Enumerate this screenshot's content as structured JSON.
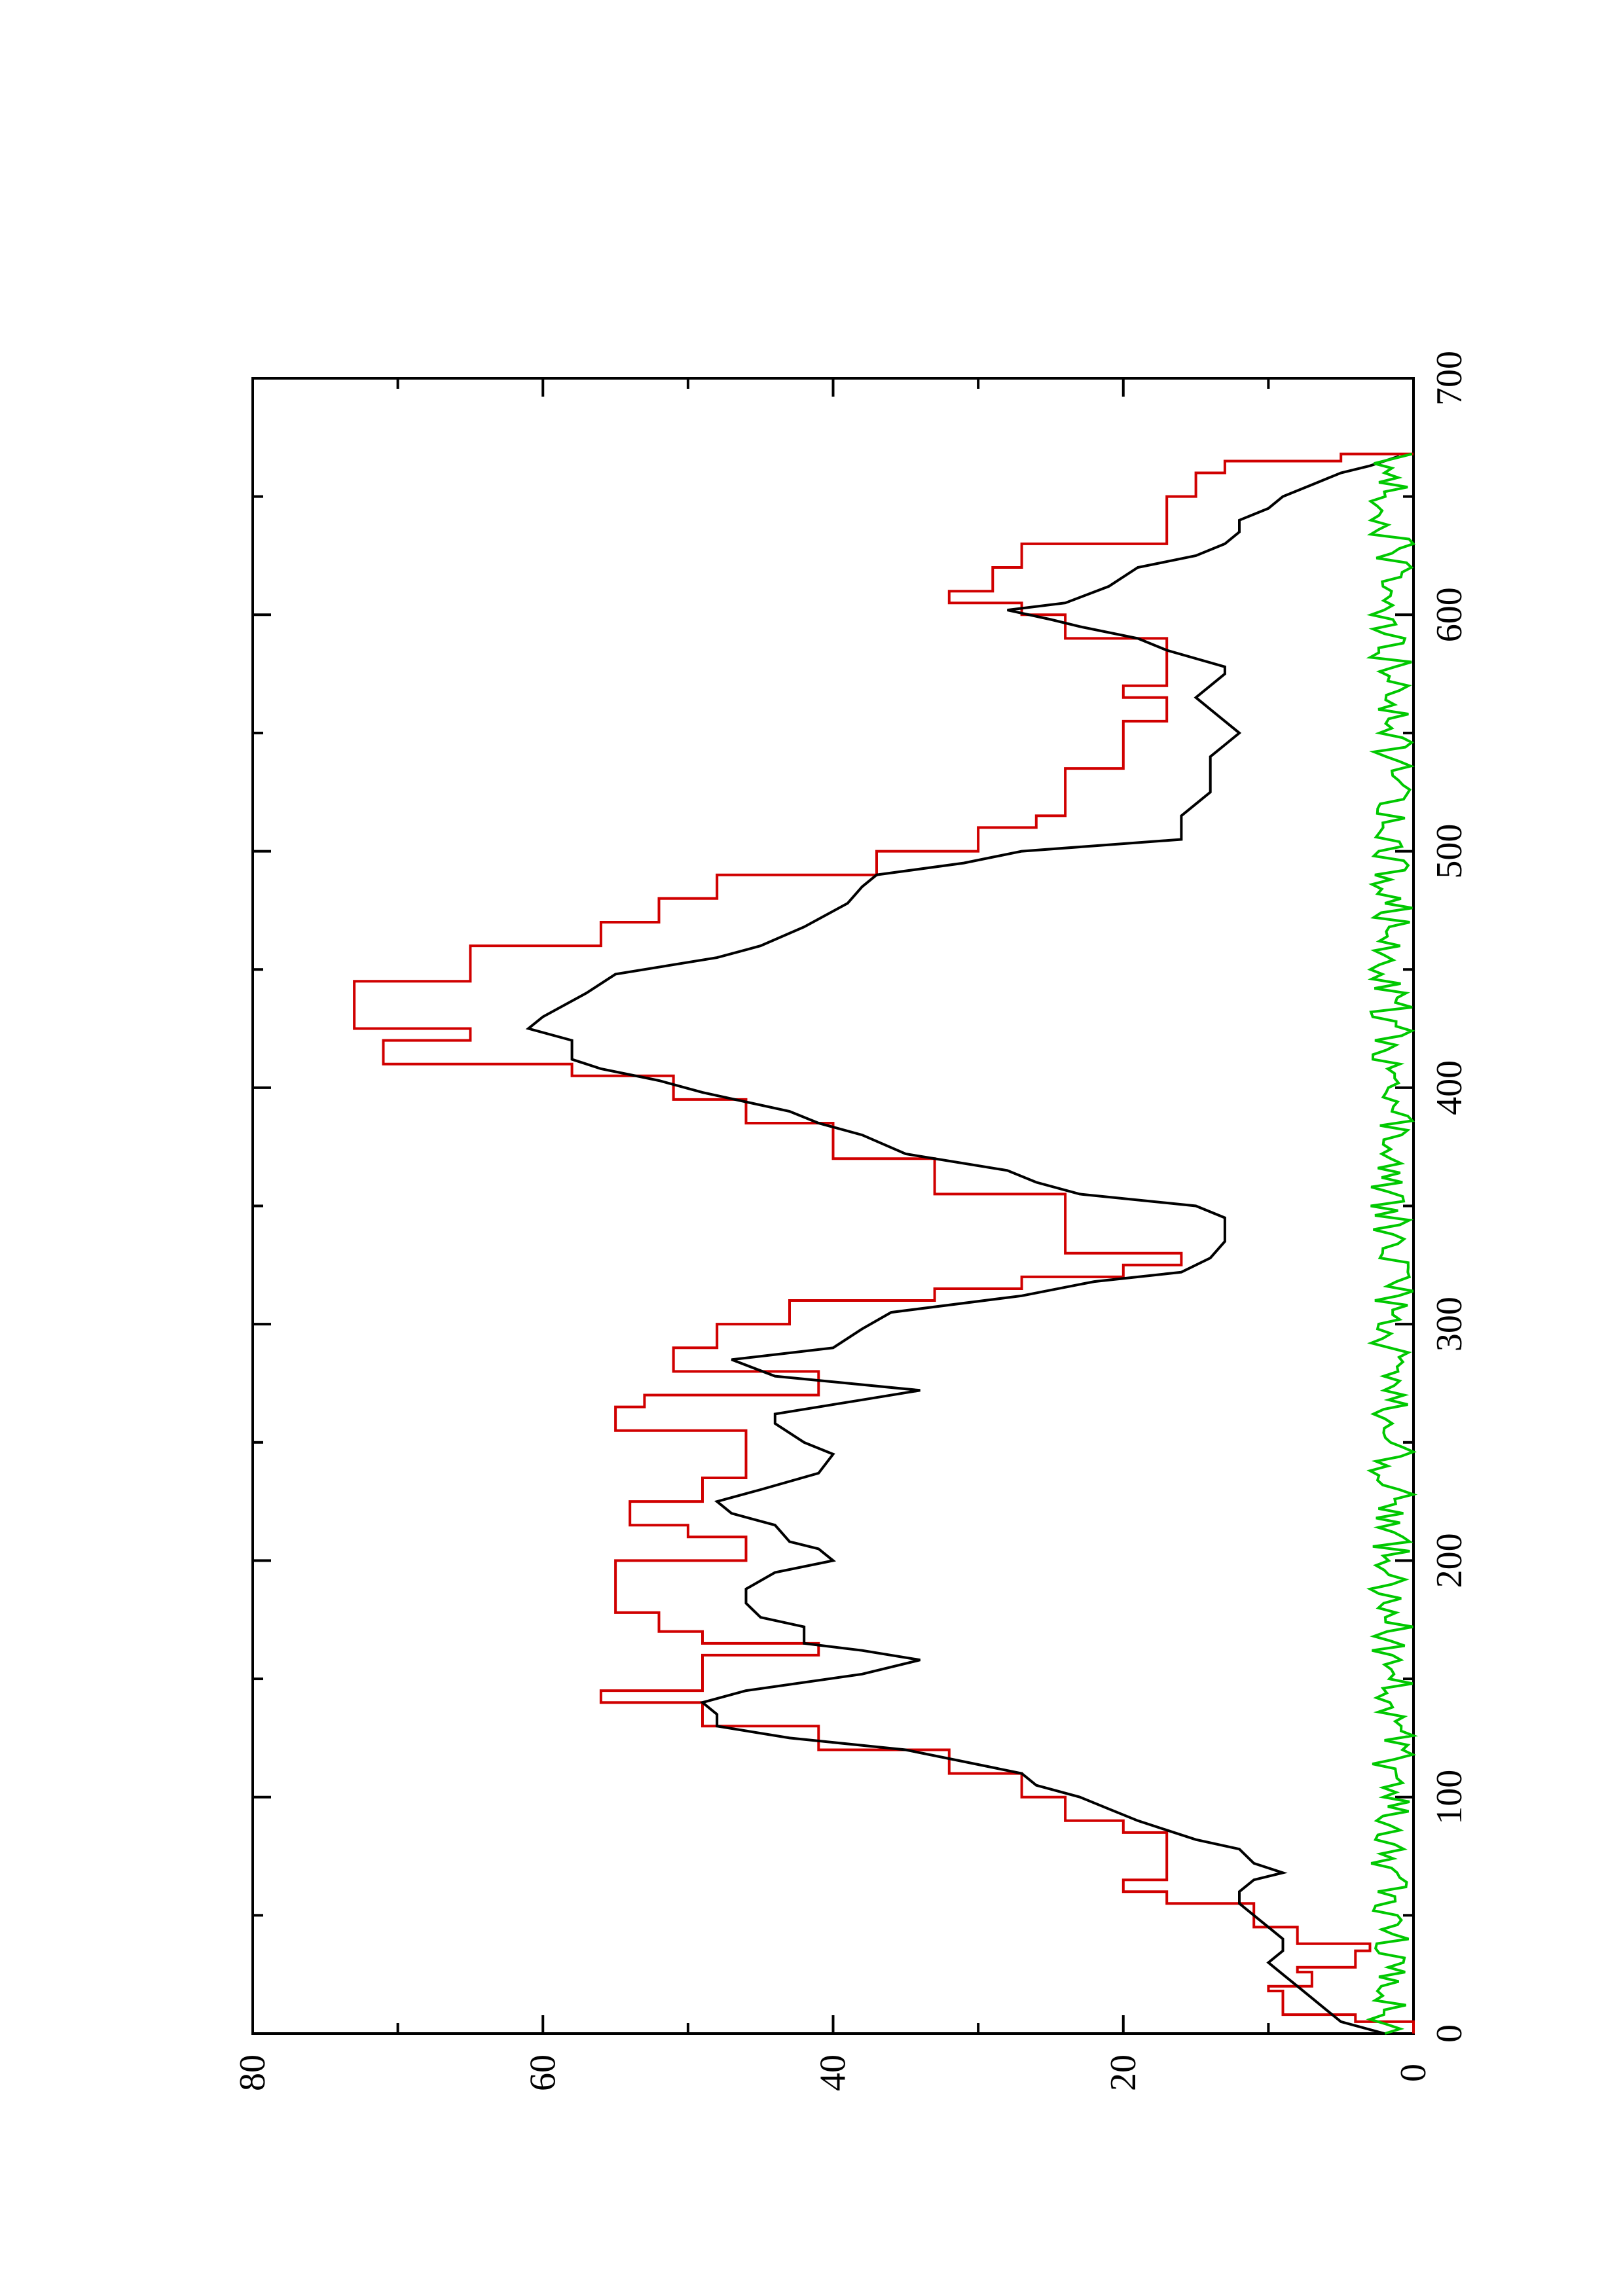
{
  "chart_data": {
    "type": "line",
    "orientation": "rotated 90° counter-clockwise (x axis vertical, y axis horizontal)",
    "title": "",
    "xlabel": "",
    "ylabel": "",
    "xlim": [
      0,
      700
    ],
    "ylim": [
      0,
      80
    ],
    "grid": false,
    "legend": "none",
    "x_ticks": [
      0,
      100,
      200,
      300,
      400,
      500,
      600,
      700
    ],
    "x_tick_labels": [
      "0",
      "100",
      "200",
      "300",
      "400",
      "500",
      "600",
      "700"
    ],
    "y_ticks": [
      0,
      20,
      40,
      60,
      80
    ],
    "y_tick_labels": [
      "0",
      "20",
      "40",
      "60",
      "80"
    ],
    "series": [
      {
        "color": "#d00000",
        "step": true,
        "points": [
          [
            0,
            0
          ],
          [
            5,
            4
          ],
          [
            8,
            9
          ],
          [
            18,
            10
          ],
          [
            20,
            7
          ],
          [
            26,
            8
          ],
          [
            28,
            4
          ],
          [
            35,
            3
          ],
          [
            38,
            8
          ],
          [
            45,
            11
          ],
          [
            55,
            17
          ],
          [
            60,
            20
          ],
          [
            65,
            17
          ],
          [
            80,
            17
          ],
          [
            85,
            20
          ],
          [
            90,
            24
          ],
          [
            100,
            27
          ],
          [
            110,
            32
          ],
          [
            120,
            41
          ],
          [
            130,
            49
          ],
          [
            140,
            56
          ],
          [
            145,
            49
          ],
          [
            160,
            41
          ],
          [
            165,
            49
          ],
          [
            170,
            52
          ],
          [
            178,
            55
          ],
          [
            200,
            46
          ],
          [
            210,
            50
          ],
          [
            215,
            54
          ],
          [
            225,
            49
          ],
          [
            235,
            46
          ],
          [
            250,
            46
          ],
          [
            255,
            55
          ],
          [
            265,
            53
          ],
          [
            270,
            41
          ],
          [
            280,
            51
          ],
          [
            290,
            48
          ],
          [
            300,
            43
          ],
          [
            310,
            33
          ],
          [
            315,
            27
          ],
          [
            320,
            20
          ],
          [
            325,
            16
          ],
          [
            330,
            24
          ],
          [
            345,
            24
          ],
          [
            355,
            33
          ],
          [
            370,
            40
          ],
          [
            380,
            40
          ],
          [
            385,
            46
          ],
          [
            395,
            51
          ],
          [
            405,
            58
          ],
          [
            410,
            71
          ],
          [
            420,
            65
          ],
          [
            425,
            73
          ],
          [
            445,
            65
          ],
          [
            455,
            65
          ],
          [
            460,
            56
          ],
          [
            470,
            52
          ],
          [
            480,
            48
          ],
          [
            490,
            37
          ],
          [
            500,
            30
          ],
          [
            510,
            26
          ],
          [
            515,
            24
          ],
          [
            520,
            24
          ],
          [
            525,
            24
          ],
          [
            535,
            20
          ],
          [
            540,
            20
          ],
          [
            550,
            20
          ],
          [
            555,
            17
          ],
          [
            560,
            17
          ],
          [
            565,
            20
          ],
          [
            570,
            17
          ],
          [
            580,
            17
          ],
          [
            590,
            24
          ],
          [
            600,
            27
          ],
          [
            605,
            32
          ],
          [
            610,
            29
          ],
          [
            620,
            27
          ],
          [
            630,
            17
          ],
          [
            640,
            17
          ],
          [
            650,
            15
          ],
          [
            660,
            13
          ],
          [
            665,
            5
          ],
          [
            668,
            0
          ]
        ]
      },
      {
        "color": "#000000",
        "step": false,
        "points": [
          [
            0,
            2
          ],
          [
            5,
            5
          ],
          [
            10,
            6
          ],
          [
            15,
            7
          ],
          [
            20,
            8
          ],
          [
            25,
            9
          ],
          [
            30,
            10
          ],
          [
            35,
            9
          ],
          [
            40,
            9
          ],
          [
            45,
            10
          ],
          [
            50,
            11
          ],
          [
            55,
            12
          ],
          [
            60,
            12
          ],
          [
            65,
            11
          ],
          [
            68,
            9
          ],
          [
            72,
            11
          ],
          [
            78,
            12
          ],
          [
            82,
            15
          ],
          [
            90,
            19
          ],
          [
            95,
            21
          ],
          [
            100,
            23
          ],
          [
            105,
            26
          ],
          [
            110,
            27
          ],
          [
            115,
            31
          ],
          [
            120,
            35
          ],
          [
            125,
            43
          ],
          [
            130,
            48
          ],
          [
            135,
            48
          ],
          [
            140,
            49
          ],
          [
            145,
            46
          ],
          [
            152,
            38
          ],
          [
            158,
            34
          ],
          [
            162,
            38
          ],
          [
            165,
            42
          ],
          [
            172,
            42
          ],
          [
            176,
            45
          ],
          [
            182,
            46
          ],
          [
            188,
            46
          ],
          [
            195,
            44
          ],
          [
            200,
            40
          ],
          [
            205,
            41
          ],
          [
            208,
            43
          ],
          [
            215,
            44
          ],
          [
            220,
            47
          ],
          [
            225,
            48
          ],
          [
            230,
            45
          ],
          [
            237,
            41
          ],
          [
            245,
            40
          ],
          [
            250,
            42
          ],
          [
            258,
            44
          ],
          [
            262,
            44
          ],
          [
            268,
            38
          ],
          [
            272,
            34
          ],
          [
            278,
            44
          ],
          [
            285,
            47
          ],
          [
            290,
            40
          ],
          [
            298,
            38
          ],
          [
            305,
            36
          ],
          [
            312,
            27
          ],
          [
            318,
            22
          ],
          [
            322,
            16
          ],
          [
            328,
            14
          ],
          [
            335,
            13
          ],
          [
            340,
            13
          ],
          [
            345,
            13
          ],
          [
            350,
            15
          ],
          [
            355,
            23
          ],
          [
            360,
            26
          ],
          [
            365,
            28
          ],
          [
            372,
            35
          ],
          [
            380,
            38
          ],
          [
            385,
            41
          ],
          [
            390,
            43
          ],
          [
            398,
            49
          ],
          [
            403,
            52
          ],
          [
            408,
            56
          ],
          [
            412,
            58
          ],
          [
            417,
            58
          ],
          [
            420,
            58
          ],
          [
            425,
            61
          ],
          [
            430,
            60
          ],
          [
            440,
            57
          ],
          [
            448,
            55
          ],
          [
            455,
            48
          ],
          [
            460,
            45
          ],
          [
            468,
            42
          ],
          [
            478,
            39
          ],
          [
            485,
            38
          ],
          [
            490,
            37
          ],
          [
            495,
            31
          ],
          [
            500,
            27
          ],
          [
            505,
            16
          ],
          [
            510,
            16
          ],
          [
            515,
            16
          ],
          [
            520,
            15
          ],
          [
            525,
            14
          ],
          [
            530,
            14
          ],
          [
            535,
            14
          ],
          [
            540,
            14
          ],
          [
            545,
            13
          ],
          [
            550,
            12
          ],
          [
            555,
            13
          ],
          [
            560,
            14
          ],
          [
            565,
            15
          ],
          [
            570,
            14
          ],
          [
            575,
            13
          ],
          [
            578,
            13
          ],
          [
            585,
            17
          ],
          [
            590,
            19
          ],
          [
            595,
            23
          ],
          [
            598,
            25
          ],
          [
            602,
            28
          ],
          [
            605,
            24
          ],
          [
            612,
            21
          ],
          [
            620,
            19
          ],
          [
            625,
            15
          ],
          [
            630,
            13
          ],
          [
            635,
            12
          ],
          [
            640,
            12
          ],
          [
            645,
            10
          ],
          [
            650,
            9
          ],
          [
            655,
            7
          ],
          [
            660,
            5
          ],
          [
            663,
            3
          ],
          [
            667,
            1
          ]
        ]
      },
      {
        "color": "#00c800",
        "step": false,
        "noise": true,
        "description": "rapidly fluctuating near-zero series",
        "range": [
          0,
          3
        ]
      }
    ]
  }
}
